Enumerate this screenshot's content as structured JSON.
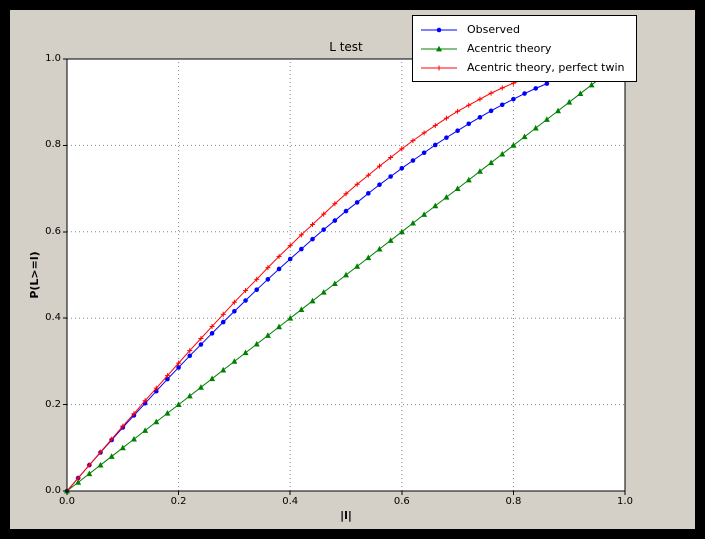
{
  "window": {
    "outer_background": "#000000",
    "figure_background": "#d4d0c8",
    "plot_background": "#ffffff"
  },
  "chart_data": {
    "type": "line",
    "title": "L test",
    "xlabel": "|l|",
    "ylabel": "P(L>=l)",
    "xlim": [
      0,
      1
    ],
    "ylim": [
      0,
      1
    ],
    "grid": true,
    "grid_style": "dotted",
    "legend_position": "top-right",
    "x_ticks": [
      "0.0",
      "0.2",
      "0.4",
      "0.6",
      "0.8",
      "1.0"
    ],
    "y_ticks": [
      "0.0",
      "0.2",
      "0.4",
      "0.6",
      "0.8",
      "1.0"
    ],
    "series": [
      {
        "name": "Observed",
        "color": "#0000ff",
        "marker": "circle",
        "x": [
          0,
          0.02,
          0.04,
          0.06,
          0.08,
          0.1,
          0.12,
          0.14,
          0.16,
          0.18,
          0.2,
          0.22,
          0.24,
          0.26,
          0.28,
          0.3,
          0.32,
          0.34,
          0.36,
          0.38,
          0.4,
          0.42,
          0.44,
          0.46,
          0.48,
          0.5,
          0.52,
          0.54,
          0.56,
          0.58,
          0.6,
          0.62,
          0.64,
          0.66,
          0.68,
          0.7,
          0.72,
          0.74,
          0.76,
          0.78,
          0.8,
          0.82,
          0.84,
          0.86
        ],
        "y": [
          0,
          0.03,
          0.06,
          0.089,
          0.118,
          0.147,
          0.175,
          0.203,
          0.231,
          0.259,
          0.286,
          0.313,
          0.339,
          0.365,
          0.391,
          0.416,
          0.441,
          0.466,
          0.49,
          0.514,
          0.537,
          0.56,
          0.583,
          0.605,
          0.626,
          0.648,
          0.668,
          0.689,
          0.709,
          0.728,
          0.747,
          0.765,
          0.783,
          0.801,
          0.818,
          0.834,
          0.85,
          0.865,
          0.88,
          0.894,
          0.907,
          0.92,
          0.932,
          0.943
        ]
      },
      {
        "name": "Acentric theory",
        "color": "#008000",
        "marker": "triangle",
        "x": [
          0,
          0.02,
          0.04,
          0.06,
          0.08,
          0.1,
          0.12,
          0.14,
          0.16,
          0.18,
          0.2,
          0.22,
          0.24,
          0.26,
          0.28,
          0.3,
          0.32,
          0.34,
          0.36,
          0.38,
          0.4,
          0.42,
          0.44,
          0.46,
          0.48,
          0.5,
          0.52,
          0.54,
          0.56,
          0.58,
          0.6,
          0.62,
          0.64,
          0.66,
          0.68,
          0.7,
          0.72,
          0.74,
          0.76,
          0.78,
          0.8,
          0.82,
          0.84,
          0.86,
          0.88,
          0.9,
          0.92,
          0.94,
          0.96
        ],
        "y": [
          0,
          0.02,
          0.04,
          0.06,
          0.08,
          0.1,
          0.12,
          0.14,
          0.16,
          0.18,
          0.2,
          0.22,
          0.24,
          0.26,
          0.28,
          0.3,
          0.32,
          0.34,
          0.36,
          0.38,
          0.4,
          0.42,
          0.44,
          0.46,
          0.48,
          0.5,
          0.52,
          0.54,
          0.56,
          0.58,
          0.6,
          0.62,
          0.64,
          0.66,
          0.68,
          0.7,
          0.72,
          0.74,
          0.76,
          0.78,
          0.8,
          0.82,
          0.84,
          0.86,
          0.88,
          0.9,
          0.92,
          0.94,
          0.96
        ]
      },
      {
        "name": "Acentric theory, perfect twin",
        "color": "#ff0000",
        "marker": "plus",
        "x": [
          0,
          0.02,
          0.04,
          0.06,
          0.08,
          0.1,
          0.12,
          0.14,
          0.16,
          0.18,
          0.2,
          0.22,
          0.24,
          0.26,
          0.28,
          0.3,
          0.32,
          0.34,
          0.36,
          0.38,
          0.4,
          0.42,
          0.44,
          0.46,
          0.48,
          0.5,
          0.52,
          0.54,
          0.56,
          0.58,
          0.6,
          0.62,
          0.64,
          0.66,
          0.68,
          0.7,
          0.72,
          0.74,
          0.76,
          0.78,
          0.8,
          0.82,
          0.84,
          0.86,
          0.88,
          0.9,
          0.92
        ],
        "y": [
          0,
          0.03,
          0.06,
          0.09,
          0.12,
          0.15,
          0.179,
          0.209,
          0.238,
          0.267,
          0.296,
          0.325,
          0.353,
          0.381,
          0.409,
          0.437,
          0.464,
          0.49,
          0.517,
          0.543,
          0.568,
          0.593,
          0.617,
          0.641,
          0.665,
          0.688,
          0.71,
          0.731,
          0.752,
          0.772,
          0.792,
          0.811,
          0.829,
          0.846,
          0.863,
          0.879,
          0.893,
          0.907,
          0.921,
          0.933,
          0.944,
          0.954,
          0.964,
          0.972,
          0.979,
          0.986,
          0.991
        ]
      }
    ]
  }
}
